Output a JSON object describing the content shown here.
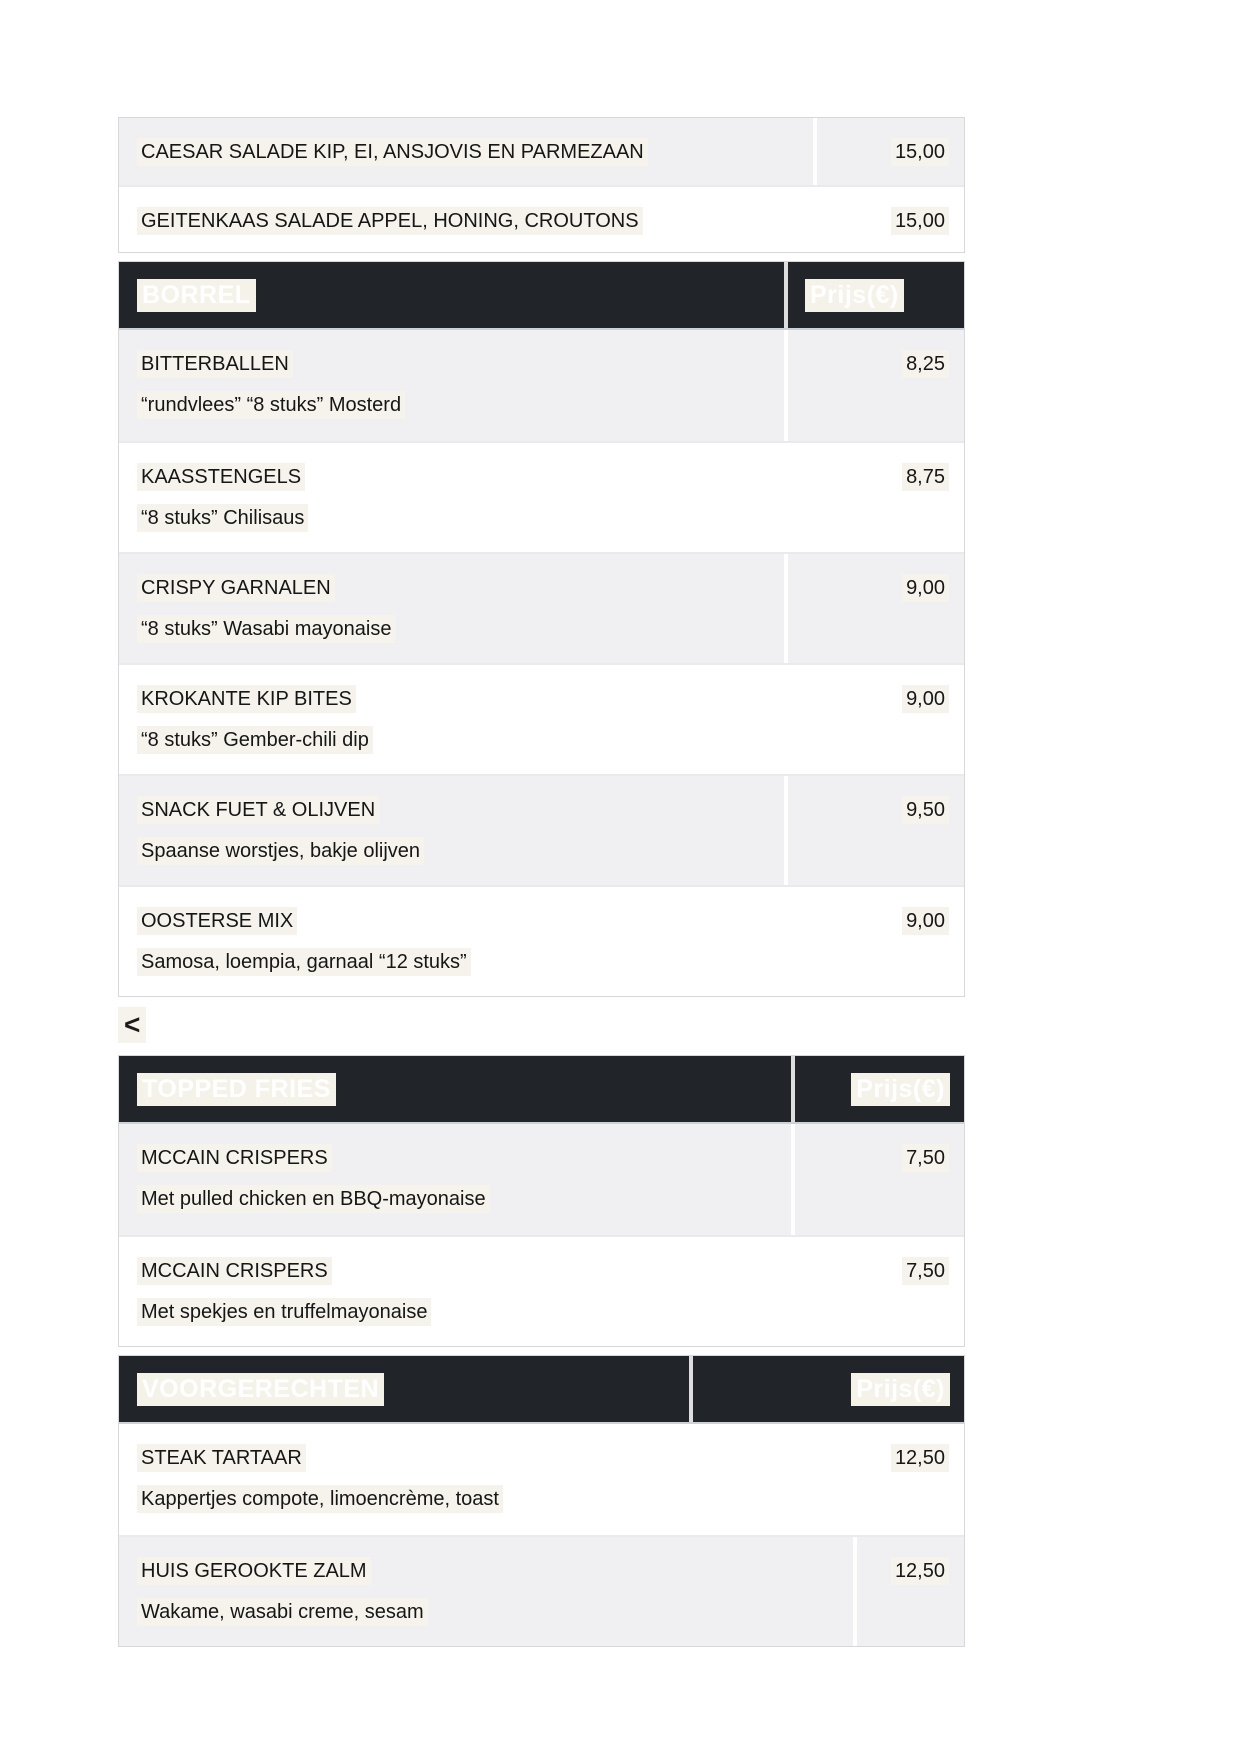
{
  "back_link": {
    "label": "<"
  },
  "colors": {
    "section_header_bg": "#212529",
    "section_header_text": "#ffffff",
    "row_shaded_bg": "#f0eff1",
    "row_plain_bg": "#ffffff",
    "text_highlight_bg": "#f6f3ec",
    "text_color": "#161616"
  },
  "menu_sections": [
    {
      "title": "",
      "price_header": "",
      "rows": [
        {
          "name": "CAESAR SALADE KIP, EI, ANSJOVIS EN PARMEZAAN",
          "description": "",
          "price": "15,00"
        },
        {
          "name": "GEITENKAAS SALADE APPEL, HONING, CROUTONS",
          "description": "",
          "price": "15,00"
        }
      ]
    },
    {
      "title": "BORREL",
      "price_header": "Prijs(€)",
      "rows": [
        {
          "name": "BITTERBALLEN",
          "description": "“rundvlees” “8 stuks” Mosterd",
          "price": "8,25"
        },
        {
          "name": "KAASSTENGELS",
          "description": "“8 stuks” Chilisaus",
          "price": "8,75"
        },
        {
          "name": "CRISPY GARNALEN",
          "description": "“8 stuks” Wasabi mayonaise",
          "price": "9,00"
        },
        {
          "name": "KROKANTE KIP BITES",
          "description": "“8 stuks” Gember-chili dip",
          "price": "9,00"
        },
        {
          "name": "SNACK FUET & OLIJVEN",
          "description": "Spaanse worstjes, bakje olijven",
          "price": "9,50"
        },
        {
          "name": "OOSTERSE MIX",
          "description": "Samosa, loempia, garnaal “12 stuks”",
          "price": "9,00"
        }
      ]
    },
    {
      "title": "TOPPED FRIES",
      "price_header": "Prijs(€)",
      "rows": [
        {
          "name": "MCCAIN CRISPERS",
          "description": "Met pulled chicken en BBQ-mayonaise",
          "price": "7,50"
        },
        {
          "name": "MCCAIN CRISPERS",
          "description": "Met spekjes en truffelmayonaise",
          "price": "7,50"
        }
      ]
    },
    {
      "title": "VOORGERECHTEN",
      "price_header": "Prijs(€)",
      "rows": [
        {
          "name": "STEAK TARTAAR",
          "description": "Kappertjes compote, limoencrème, toast",
          "price": "12,50"
        },
        {
          "name": "HUIS GEROOKTE ZALM",
          "description": "Wakame, wasabi creme, sesam",
          "price": "12,50"
        }
      ]
    }
  ]
}
